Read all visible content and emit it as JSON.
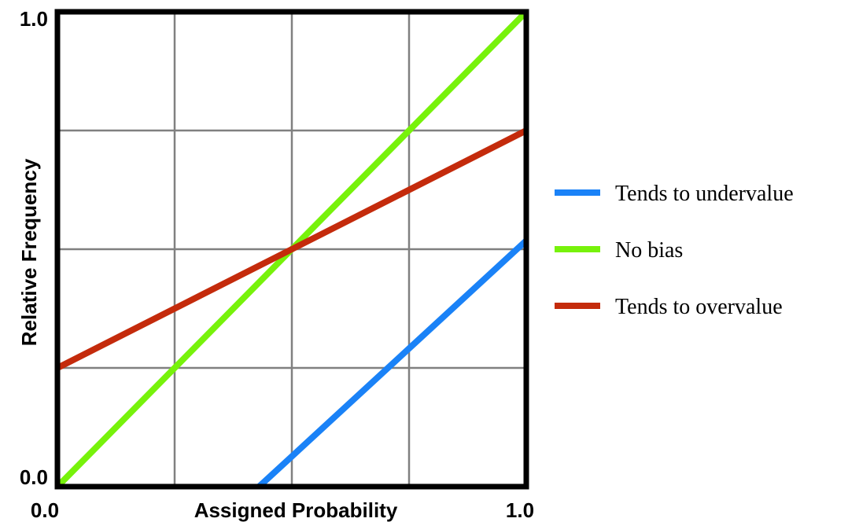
{
  "chart_data": {
    "type": "line",
    "xlabel": "Assigned Probability",
    "ylabel": "Relative Frequency",
    "xlim": [
      0,
      1
    ],
    "ylim": [
      0,
      1
    ],
    "grid": true,
    "legend_placement": "right",
    "x_tick_labels": [
      "0.0",
      "1.0"
    ],
    "y_tick_labels": [
      "0.0",
      "1.0"
    ],
    "series": [
      {
        "name": "Tends to undervalue",
        "color": "#1a82f7",
        "x": [
          0.43,
          1.53
        ],
        "y": [
          0.0,
          1.0
        ]
      },
      {
        "name": "No bias",
        "color": "#77f20b",
        "x": [
          0.0,
          1.0
        ],
        "y": [
          0.0,
          1.0
        ]
      },
      {
        "name": "Tends to overvalue",
        "color": "#c42b0c",
        "x": [
          0.0,
          1.0
        ],
        "y": [
          0.25,
          0.75
        ]
      }
    ]
  }
}
